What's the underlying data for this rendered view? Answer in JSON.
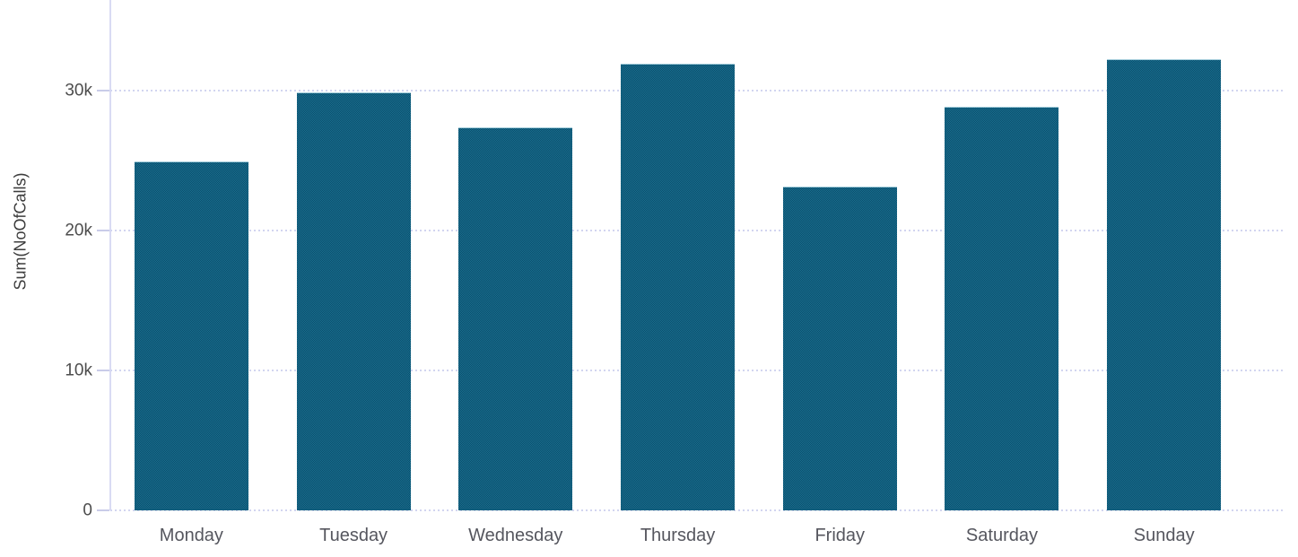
{
  "chart_data": {
    "type": "bar",
    "title": "",
    "xlabel": "",
    "ylabel": "Sum(NoOfCalls)",
    "categories": [
      "Monday",
      "Tuesday",
      "Wednesday",
      "Thursday",
      "Friday",
      "Saturday",
      "Sunday"
    ],
    "values": [
      24950,
      29900,
      27400,
      31900,
      23150,
      28850,
      32250
    ],
    "series_name": "Sum(NoOfCalls)",
    "ylim": [
      0,
      36500
    ],
    "yticks": [
      {
        "value": 0,
        "label": "0"
      },
      {
        "value": 10000,
        "label": "10k"
      },
      {
        "value": 20000,
        "label": "20k"
      },
      {
        "value": 30000,
        "label": "30k"
      }
    ],
    "grid": true,
    "legend": false,
    "colors": {
      "bar_pattern_light": "#17718f",
      "bar_pattern_dark": "#0d4c6c",
      "axis_line": "#d9dbf3",
      "gridline": "#d2d5f0",
      "tick_mark": "#c9cce9",
      "tick_label_text": "#4d4d4d",
      "x_label_text": "#55565e",
      "axis_title_text": "#3d3d3d",
      "background": "#ffffff"
    }
  }
}
